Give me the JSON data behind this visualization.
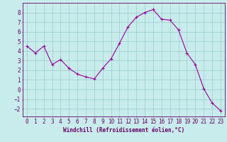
{
  "x": [
    0,
    1,
    2,
    3,
    4,
    5,
    6,
    7,
    8,
    9,
    10,
    11,
    12,
    13,
    14,
    15,
    16,
    17,
    18,
    19,
    20,
    21,
    22,
    23
  ],
  "y": [
    4.5,
    3.8,
    4.5,
    2.6,
    3.1,
    2.2,
    1.6,
    1.3,
    1.1,
    2.2,
    3.2,
    4.8,
    6.5,
    7.5,
    8.0,
    8.3,
    7.3,
    7.2,
    6.2,
    3.8,
    2.6,
    0.1,
    -1.4,
    -2.2
  ],
  "line_color": "#990099",
  "marker": "+",
  "bg_color": "#c8ecec",
  "grid_color": "#99cccc",
  "xlabel": "Windchill (Refroidissement éolien,°C)",
  "ylim": [
    -2.8,
    9.0
  ],
  "xlim": [
    -0.5,
    23.5
  ],
  "yticks": [
    -2,
    -1,
    0,
    1,
    2,
    3,
    4,
    5,
    6,
    7,
    8
  ],
  "xticks": [
    0,
    1,
    2,
    3,
    4,
    5,
    6,
    7,
    8,
    9,
    10,
    11,
    12,
    13,
    14,
    15,
    16,
    17,
    18,
    19,
    20,
    21,
    22,
    23
  ],
  "tick_color": "#660066",
  "label_color": "#660066",
  "axis_color": "#660066",
  "font_size": 5.5
}
